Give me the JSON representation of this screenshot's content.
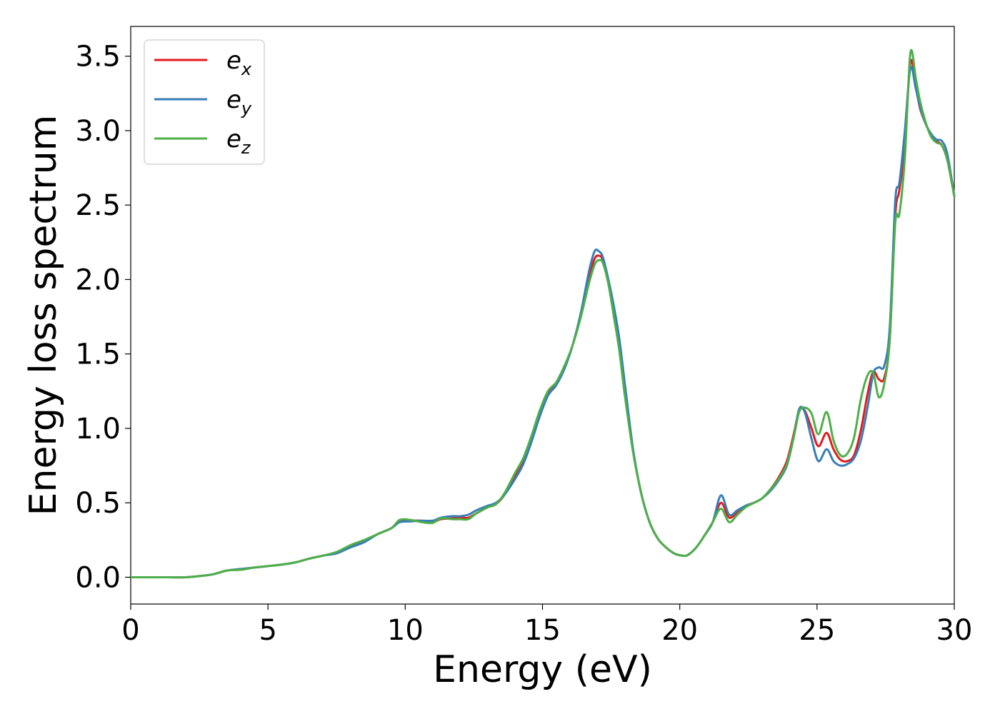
{
  "chart_data": {
    "type": "line",
    "xlabel": "Energy (eV)",
    "ylabel": "Energy loss spectrum",
    "xlim": [
      0,
      30
    ],
    "ylim": [
      -0.18,
      3.7
    ],
    "x_ticks": [
      0,
      5,
      10,
      15,
      20,
      25,
      30
    ],
    "y_ticks": [
      "0.0",
      "0.5",
      "1.0",
      "1.5",
      "2.0",
      "2.5",
      "3.0",
      "3.5"
    ],
    "grid": false,
    "legend_position": "top-left",
    "x": [
      0,
      1,
      2,
      2.6,
      3,
      3.5,
      4,
      4.5,
      5,
      5.5,
      6,
      6.5,
      7,
      7.5,
      8,
      8.5,
      9,
      9.5,
      9.8,
      10.2,
      10.6,
      11,
      11.3,
      11.7,
      12,
      12.3,
      12.6,
      13,
      13.3,
      13.6,
      14,
      14.3,
      14.6,
      14.9,
      15.2,
      15.5,
      15.8,
      16.1,
      16.4,
      16.7,
      16.9,
      17.05,
      17.2,
      17.4,
      17.6,
      17.8,
      18,
      18.3,
      18.6,
      18.9,
      19.2,
      19.5,
      19.8,
      20.1,
      20.3,
      20.6,
      20.9,
      21.2,
      21.5,
      21.8,
      22.1,
      22.4,
      22.7,
      23,
      23.3,
      23.6,
      23.9,
      24.15,
      24.35,
      24.55,
      24.8,
      25.05,
      25.35,
      25.6,
      25.85,
      26.1,
      26.35,
      26.6,
      26.85,
      27.05,
      27.25,
      27.45,
      27.65,
      27.85,
      28.0,
      28.2,
      28.4,
      28.6,
      28.75,
      28.95,
      29.15,
      29.35,
      29.55,
      29.75,
      30
    ],
    "series": [
      {
        "name": "e_x",
        "label_base": "e",
        "label_sub": "x",
        "color": "#e41a1c",
        "values": [
          0,
          0,
          0,
          0.01,
          0.02,
          0.045,
          0.055,
          0.065,
          0.075,
          0.085,
          0.1,
          0.125,
          0.145,
          0.165,
          0.205,
          0.24,
          0.29,
          0.33,
          0.38,
          0.38,
          0.38,
          0.37,
          0.39,
          0.395,
          0.4,
          0.4,
          0.43,
          0.47,
          0.49,
          0.55,
          0.68,
          0.78,
          0.93,
          1.1,
          1.24,
          1.3,
          1.41,
          1.56,
          1.77,
          2.02,
          2.14,
          2.16,
          2.13,
          1.98,
          1.78,
          1.55,
          1.25,
          0.85,
          0.56,
          0.37,
          0.26,
          0.2,
          0.16,
          0.145,
          0.15,
          0.2,
          0.28,
          0.37,
          0.5,
          0.4,
          0.44,
          0.48,
          0.5,
          0.53,
          0.59,
          0.67,
          0.78,
          0.96,
          1.12,
          1.12,
          1.0,
          0.88,
          0.97,
          0.86,
          0.79,
          0.78,
          0.82,
          0.99,
          1.24,
          1.38,
          1.33,
          1.34,
          1.6,
          2.43,
          2.6,
          2.9,
          3.46,
          3.3,
          3.15,
          3.05,
          2.97,
          2.93,
          2.9,
          2.8,
          2.56
        ]
      },
      {
        "name": "e_y",
        "label_base": "e",
        "label_sub": "y",
        "color": "#377eb8",
        "values": [
          0,
          0,
          0,
          0.01,
          0.02,
          0.045,
          0.055,
          0.065,
          0.075,
          0.085,
          0.1,
          0.125,
          0.145,
          0.16,
          0.2,
          0.235,
          0.29,
          0.33,
          0.37,
          0.375,
          0.38,
          0.38,
          0.4,
          0.41,
          0.41,
          0.42,
          0.45,
          0.48,
          0.5,
          0.55,
          0.66,
          0.76,
          0.91,
          1.08,
          1.22,
          1.29,
          1.4,
          1.56,
          1.78,
          2.06,
          2.19,
          2.19,
          2.15,
          2.0,
          1.82,
          1.6,
          1.3,
          0.86,
          0.56,
          0.37,
          0.26,
          0.2,
          0.16,
          0.145,
          0.15,
          0.2,
          0.28,
          0.37,
          0.55,
          0.42,
          0.45,
          0.48,
          0.5,
          0.53,
          0.58,
          0.65,
          0.75,
          0.94,
          1.13,
          1.11,
          0.93,
          0.78,
          0.86,
          0.78,
          0.75,
          0.76,
          0.8,
          0.92,
          1.15,
          1.37,
          1.41,
          1.42,
          1.68,
          2.53,
          2.65,
          3.0,
          3.42,
          3.28,
          3.16,
          3.05,
          2.98,
          2.94,
          2.93,
          2.84,
          2.56
        ]
      },
      {
        "name": "e_z",
        "label_base": "e",
        "label_sub": "z",
        "color": "#4daf4a",
        "values": [
          0,
          0,
          0,
          0.01,
          0.02,
          0.045,
          0.05,
          0.065,
          0.075,
          0.085,
          0.1,
          0.125,
          0.145,
          0.17,
          0.215,
          0.25,
          0.29,
          0.33,
          0.385,
          0.385,
          0.37,
          0.365,
          0.395,
          0.39,
          0.39,
          0.39,
          0.43,
          0.47,
          0.49,
          0.56,
          0.7,
          0.8,
          0.95,
          1.12,
          1.25,
          1.31,
          1.42,
          1.56,
          1.75,
          1.98,
          2.1,
          2.13,
          2.11,
          1.97,
          1.75,
          1.52,
          1.22,
          0.84,
          0.56,
          0.37,
          0.26,
          0.2,
          0.16,
          0.145,
          0.15,
          0.2,
          0.28,
          0.37,
          0.46,
          0.37,
          0.42,
          0.47,
          0.5,
          0.53,
          0.59,
          0.66,
          0.76,
          0.94,
          1.11,
          1.14,
          1.1,
          0.96,
          1.11,
          0.92,
          0.82,
          0.83,
          0.94,
          1.2,
          1.36,
          1.37,
          1.21,
          1.3,
          1.6,
          2.38,
          2.44,
          2.82,
          3.52,
          3.35,
          3.2,
          3.06,
          2.96,
          2.92,
          2.9,
          2.8,
          2.56
        ]
      }
    ]
  }
}
